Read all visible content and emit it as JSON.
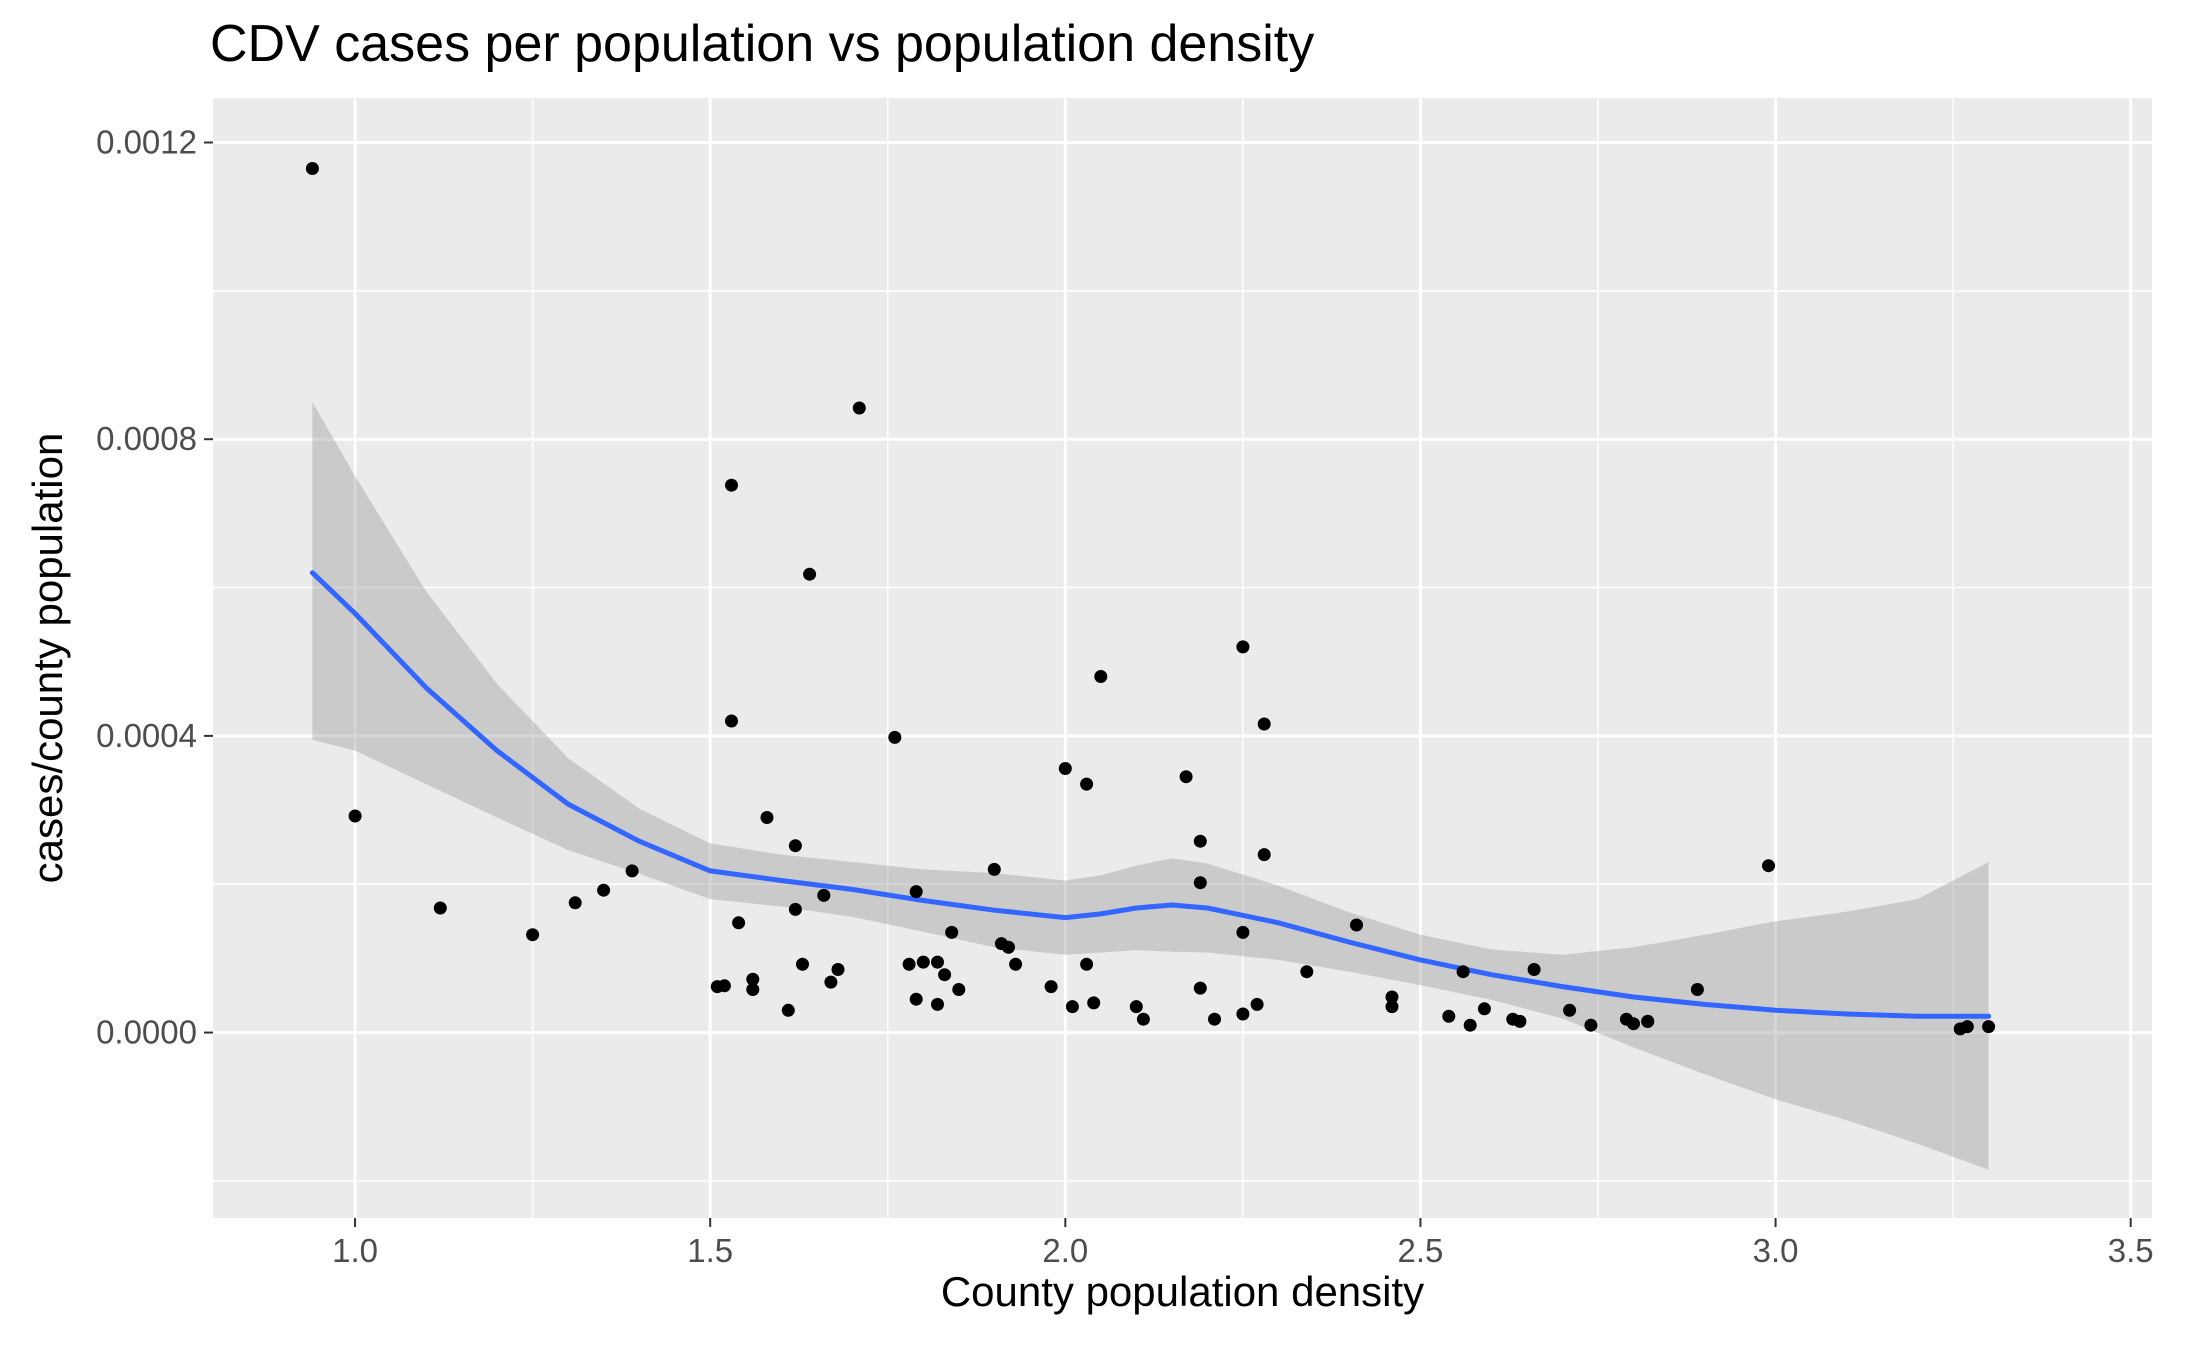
{
  "chart_data": {
    "type": "scatter",
    "title": "CDV cases per population vs population density",
    "xlabel": "County population density",
    "ylabel": "cases/county population",
    "xlim": [
      0.8,
      3.53
    ],
    "ylim": [
      -0.00025,
      0.00126
    ],
    "x_ticks": [
      1.0,
      1.5,
      2.0,
      2.5,
      3.0,
      3.5
    ],
    "x_tick_labels": [
      "1.0",
      "1.5",
      "2.0",
      "2.5",
      "3.0",
      "3.5"
    ],
    "y_ticks": [
      0.0,
      0.0004,
      0.0008,
      0.0012
    ],
    "y_tick_labels": [
      "0.0000",
      "0.0004",
      "0.0008",
      "0.0012"
    ],
    "grid": true,
    "colors": {
      "panel": "#ebebeb",
      "grid": "#ffffff",
      "points": "#000000",
      "smooth": "#3366ff",
      "band": "#999999"
    },
    "points": [
      [
        0.94,
        0.001165
      ],
      [
        1.0,
        0.000292
      ],
      [
        1.12,
        0.000168
      ],
      [
        1.25,
        0.000132
      ],
      [
        1.31,
        0.000175
      ],
      [
        1.35,
        0.000192
      ],
      [
        1.39,
        0.000218
      ],
      [
        1.51,
        6.2e-05
      ],
      [
        1.52,
        6.3e-05
      ],
      [
        1.53,
        0.000738
      ],
      [
        1.53,
        0.00042
      ],
      [
        1.54,
        0.000148
      ],
      [
        1.56,
        7.2e-05
      ],
      [
        1.56,
        5.8e-05
      ],
      [
        1.58,
        0.00029
      ],
      [
        1.61,
        3e-05
      ],
      [
        1.62,
        0.000252
      ],
      [
        1.62,
        0.000166
      ],
      [
        1.63,
        9.2e-05
      ],
      [
        1.64,
        0.000618
      ],
      [
        1.66,
        0.000185
      ],
      [
        1.67,
        6.8e-05
      ],
      [
        1.68,
        8.5e-05
      ],
      [
        1.71,
        0.000842
      ],
      [
        1.76,
        0.000398
      ],
      [
        1.78,
        9.2e-05
      ],
      [
        1.79,
        0.00019
      ],
      [
        1.79,
        4.5e-05
      ],
      [
        1.8,
        9.5e-05
      ],
      [
        1.82,
        9.5e-05
      ],
      [
        1.82,
        3.8e-05
      ],
      [
        1.83,
        7.8e-05
      ],
      [
        1.84,
        0.000135
      ],
      [
        1.85,
        5.8e-05
      ],
      [
        1.9,
        0.00022
      ],
      [
        1.91,
        0.00012
      ],
      [
        1.92,
        0.000115
      ],
      [
        1.93,
        9.2e-05
      ],
      [
        1.98,
        6.2e-05
      ],
      [
        2.0,
        0.000356
      ],
      [
        2.01,
        3.5e-05
      ],
      [
        2.03,
        0.000335
      ],
      [
        2.03,
        9.2e-05
      ],
      [
        2.04,
        4e-05
      ],
      [
        2.05,
        0.00048
      ],
      [
        2.1,
        3.5e-05
      ],
      [
        2.11,
        1.8e-05
      ],
      [
        2.17,
        0.000345
      ],
      [
        2.19,
        0.000258
      ],
      [
        2.19,
        0.000202
      ],
      [
        2.19,
        6e-05
      ],
      [
        2.21,
        1.8e-05
      ],
      [
        2.25,
        0.00052
      ],
      [
        2.25,
        0.000135
      ],
      [
        2.25,
        2.5e-05
      ],
      [
        2.27,
        3.8e-05
      ],
      [
        2.28,
        0.00024
      ],
      [
        2.28,
        0.000416
      ],
      [
        2.34,
        8.2e-05
      ],
      [
        2.41,
        0.000145
      ],
      [
        2.46,
        4.8e-05
      ],
      [
        2.46,
        3.5e-05
      ],
      [
        2.54,
        2.2e-05
      ],
      [
        2.56,
        8.2e-05
      ],
      [
        2.57,
        1e-05
      ],
      [
        2.59,
        3.2e-05
      ],
      [
        2.63,
        1.8e-05
      ],
      [
        2.64,
        1.5e-05
      ],
      [
        2.66,
        8.5e-05
      ],
      [
        2.71,
        3e-05
      ],
      [
        2.74,
        1e-05
      ],
      [
        2.79,
        1.8e-05
      ],
      [
        2.8,
        1.2e-05
      ],
      [
        2.82,
        1.5e-05
      ],
      [
        2.82,
        1.5e-05
      ],
      [
        2.89,
        5.8e-05
      ],
      [
        2.99,
        0.000225
      ],
      [
        3.26,
        5e-06
      ],
      [
        3.27,
        8e-06
      ],
      [
        3.3,
        8e-06
      ]
    ],
    "smooth_line": {
      "x": [
        0.94,
        1.0,
        1.1,
        1.2,
        1.3,
        1.4,
        1.5,
        1.6,
        1.7,
        1.8,
        1.9,
        2.0,
        2.05,
        2.1,
        2.15,
        2.2,
        2.3,
        2.4,
        2.5,
        2.6,
        2.7,
        2.8,
        2.9,
        3.0,
        3.1,
        3.2,
        3.3
      ],
      "y": [
        0.00062,
        0.000565,
        0.000465,
        0.00038,
        0.000308,
        0.000258,
        0.000218,
        0.000205,
        0.000193,
        0.000178,
        0.000165,
        0.000155,
        0.00016,
        0.000168,
        0.000172,
        0.000168,
        0.000148,
        0.000122,
        9.8e-05,
        7.8e-05,
        6.2e-05,
        4.8e-05,
        3.8e-05,
        3e-05,
        2.5e-05,
        2.2e-05,
        2.2e-05
      ]
    },
    "confidence_band": {
      "x": [
        0.94,
        1.0,
        1.1,
        1.2,
        1.3,
        1.4,
        1.5,
        1.6,
        1.7,
        1.8,
        1.9,
        2.0,
        2.05,
        2.1,
        2.15,
        2.2,
        2.3,
        2.4,
        2.5,
        2.6,
        2.7,
        2.8,
        2.9,
        3.0,
        3.1,
        3.2,
        3.3
      ],
      "upper": [
        0.00085,
        0.00075,
        0.000595,
        0.00047,
        0.00037,
        0.000302,
        0.000255,
        0.00024,
        0.00023,
        0.00022,
        0.000215,
        0.000205,
        0.000212,
        0.000225,
        0.000235,
        0.000228,
        0.000198,
        0.000162,
        0.000132,
        0.000112,
        0.000105,
        0.000115,
        0.000132,
        0.00015,
        0.000163,
        0.00018,
        0.00023
      ],
      "lower": [
        0.000395,
        0.00038,
        0.000335,
        0.00029,
        0.000246,
        0.000214,
        0.00018,
        0.00017,
        0.000156,
        0.000136,
        0.000115,
        0.000105,
        0.000108,
        0.000111,
        0.000109,
        0.000108,
        9.8e-05,
        8.2e-05,
        6.4e-05,
        4.4e-05,
        1.9e-05,
        -2e-05,
        -5.6e-05,
        -9e-05,
        -0.000118,
        -0.00015,
        -0.000185
      ]
    }
  }
}
